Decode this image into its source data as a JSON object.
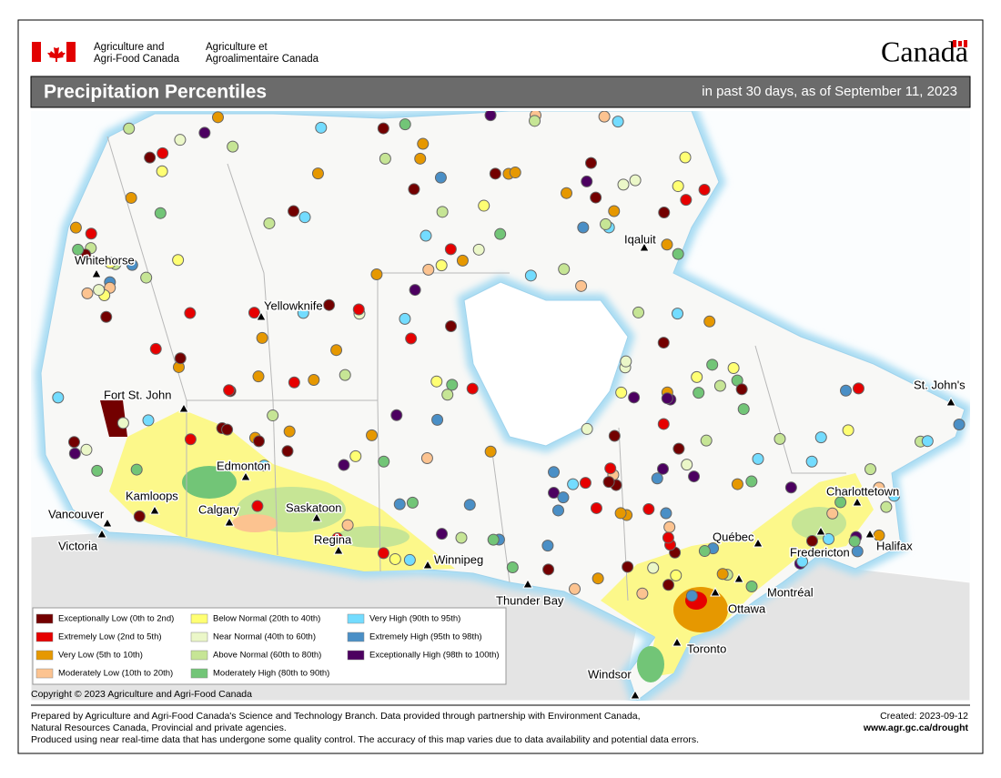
{
  "header": {
    "department_en": [
      "Agriculture and",
      "Agri-Food Canada"
    ],
    "department_fr": [
      "Agriculture et",
      "Agroalimentaire Canada"
    ],
    "wordmark": "Canada"
  },
  "title": "Precipitation Percentiles",
  "subtitle": "in past 30 days, as of September 11, 2023",
  "cities": [
    "Whitehorse",
    "Yellowknife",
    "Iqaluit",
    "Fort St. John",
    "Edmonton",
    "Kamloops",
    "Calgary",
    "Saskatoon",
    "Regina",
    "Winnipeg",
    "Vancouver",
    "Victoria",
    "Thunder Bay",
    "Toronto",
    "Windsor",
    "Ottawa",
    "Montréal",
    "Québec",
    "Fredericton",
    "Halifax",
    "Charlottetown",
    "St. John's"
  ],
  "legend": [
    {
      "label": "Exceptionally Low (0th to 2nd)",
      "color": "#730000"
    },
    {
      "label": "Extremely Low (2nd to 5th)",
      "color": "#e60000"
    },
    {
      "label": "Very Low (5th to 10th)",
      "color": "#e69800"
    },
    {
      "label": "Moderately Low (10th to 20th)",
      "color": "#fcc390"
    },
    {
      "label": "Below Normal (20th to 40th)",
      "color": "#ffff73"
    },
    {
      "label": "Near Normal (40th to 60th)",
      "color": "#ebf7c8"
    },
    {
      "label": "Above Normal (60th to 80th)",
      "color": "#c6e595"
    },
    {
      "label": "Moderately High (80th to 90th)",
      "color": "#72c577"
    },
    {
      "label": "Very High (90th to 95th)",
      "color": "#73dcff"
    },
    {
      "label": "Extremely High (95th to 98th)",
      "color": "#4a8fc6"
    },
    {
      "label": "Exceptionally High (98th to 100th)",
      "color": "#4c0060"
    }
  ],
  "copyright": "Copyright © 2023 Agriculture and Agri-Food Canada",
  "footer": {
    "lines": [
      "Prepared by Agriculture and Agri-Food Canada's Science and Technology Branch. Data provided through partnership with Environment Canada,",
      "Natural Resources Canada, Provincial and private agencies.",
      "Produced using near real-time data that has undergone some quality control. The accuracy of this map varies due to data availability and potential data errors."
    ],
    "created": "Created: 2023-09-12",
    "url": "www.agr.gc.ca/drought"
  }
}
